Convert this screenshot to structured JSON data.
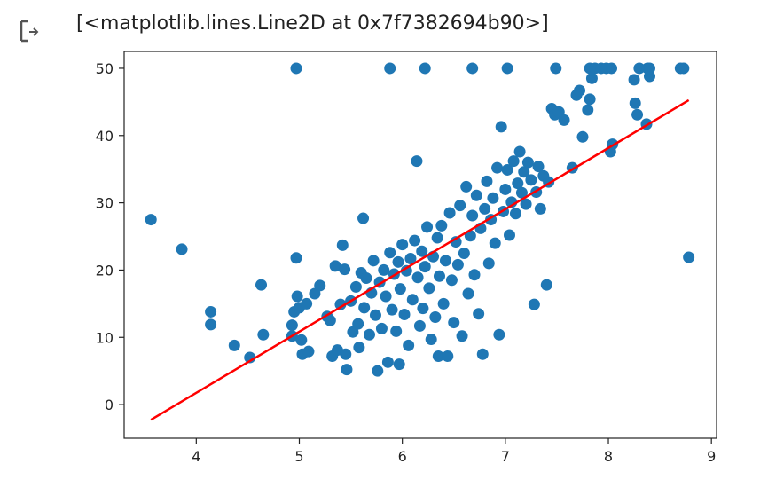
{
  "output": {
    "icon": "output-arrow-icon",
    "text": "[<matplotlib.lines.Line2D at 0x7f7382694b90>]"
  },
  "colors": {
    "points": "#1f77b4",
    "line": "#ff0000",
    "axis": "#222222"
  },
  "chart_data": {
    "type": "scatter",
    "title": "",
    "xlabel": "",
    "ylabel": "",
    "xlim": [
      3.3,
      9.05
    ],
    "ylim": [
      -5,
      52.5
    ],
    "xticks": [
      4,
      5,
      6,
      7,
      8,
      9
    ],
    "yticks": [
      0,
      10,
      20,
      30,
      40,
      50
    ],
    "grid": false,
    "points": [
      [
        3.56,
        27.5
      ],
      [
        3.86,
        23.1
      ],
      [
        4.14,
        13.8
      ],
      [
        4.14,
        11.9
      ],
      [
        4.37,
        8.8
      ],
      [
        4.52,
        7.0
      ],
      [
        4.63,
        17.8
      ],
      [
        4.65,
        10.4
      ],
      [
        4.93,
        11.8
      ],
      [
        4.93,
        10.2
      ],
      [
        4.95,
        13.8
      ],
      [
        4.97,
        21.8
      ],
      [
        4.98,
        16.1
      ],
      [
        5.0,
        14.4
      ],
      [
        5.02,
        9.6
      ],
      [
        5.03,
        7.5
      ],
      [
        5.07,
        15.0
      ],
      [
        5.09,
        7.9
      ],
      [
        5.15,
        16.5
      ],
      [
        5.2,
        17.7
      ],
      [
        5.27,
        13.1
      ],
      [
        5.3,
        12.5
      ],
      [
        5.32,
        7.2
      ],
      [
        5.35,
        20.6
      ],
      [
        5.37,
        8.1
      ],
      [
        5.4,
        14.9
      ],
      [
        5.42,
        23.7
      ],
      [
        5.44,
        20.1
      ],
      [
        5.45,
        7.5
      ],
      [
        5.46,
        5.2
      ],
      [
        5.5,
        15.4
      ],
      [
        5.52,
        10.8
      ],
      [
        5.55,
        17.5
      ],
      [
        5.57,
        12.0
      ],
      [
        5.58,
        8.5
      ],
      [
        5.6,
        19.6
      ],
      [
        5.62,
        27.7
      ],
      [
        5.63,
        14.4
      ],
      [
        5.65,
        18.8
      ],
      [
        5.68,
        10.4
      ],
      [
        5.7,
        16.6
      ],
      [
        5.72,
        21.4
      ],
      [
        5.74,
        13.3
      ],
      [
        5.76,
        5.0
      ],
      [
        5.78,
        18.2
      ],
      [
        5.8,
        11.3
      ],
      [
        5.82,
        20.0
      ],
      [
        5.84,
        16.1
      ],
      [
        5.86,
        6.3
      ],
      [
        5.88,
        22.6
      ],
      [
        5.9,
        14.1
      ],
      [
        5.92,
        19.4
      ],
      [
        5.94,
        10.9
      ],
      [
        5.96,
        21.2
      ],
      [
        5.97,
        6.0
      ],
      [
        5.98,
        17.2
      ],
      [
        6.0,
        23.8
      ],
      [
        6.02,
        13.4
      ],
      [
        6.04,
        19.9
      ],
      [
        6.06,
        8.8
      ],
      [
        6.08,
        21.7
      ],
      [
        6.1,
        15.6
      ],
      [
        6.12,
        24.4
      ],
      [
        6.14,
        36.2
      ],
      [
        6.15,
        18.9
      ],
      [
        6.17,
        11.7
      ],
      [
        6.19,
        22.8
      ],
      [
        6.2,
        14.3
      ],
      [
        6.22,
        20.5
      ],
      [
        6.24,
        26.4
      ],
      [
        6.26,
        17.3
      ],
      [
        6.28,
        9.7
      ],
      [
        6.3,
        22.0
      ],
      [
        6.32,
        13.0
      ],
      [
        6.34,
        24.8
      ],
      [
        6.35,
        7.2
      ],
      [
        6.36,
        19.1
      ],
      [
        6.38,
        26.6
      ],
      [
        6.4,
        15.0
      ],
      [
        6.42,
        21.4
      ],
      [
        6.44,
        7.2
      ],
      [
        6.46,
        28.5
      ],
      [
        6.48,
        18.5
      ],
      [
        6.5,
        12.2
      ],
      [
        6.52,
        24.2
      ],
      [
        6.54,
        20.8
      ],
      [
        6.56,
        29.6
      ],
      [
        6.58,
        10.2
      ],
      [
        6.6,
        22.5
      ],
      [
        6.62,
        32.4
      ],
      [
        6.64,
        16.5
      ],
      [
        6.66,
        25.1
      ],
      [
        6.68,
        28.1
      ],
      [
        6.7,
        19.3
      ],
      [
        6.72,
        31.1
      ],
      [
        6.74,
        13.5
      ],
      [
        6.76,
        26.2
      ],
      [
        6.78,
        7.5
      ],
      [
        6.8,
        29.1
      ],
      [
        6.82,
        33.2
      ],
      [
        6.84,
        21.0
      ],
      [
        6.86,
        27.5
      ],
      [
        6.88,
        30.7
      ],
      [
        6.9,
        24.0
      ],
      [
        6.92,
        35.2
      ],
      [
        6.94,
        10.4
      ],
      [
        6.96,
        41.3
      ],
      [
        6.98,
        28.7
      ],
      [
        7.0,
        32.0
      ],
      [
        7.02,
        34.9
      ],
      [
        7.04,
        25.2
      ],
      [
        7.06,
        30.1
      ],
      [
        7.08,
        36.2
      ],
      [
        7.1,
        28.4
      ],
      [
        7.12,
        32.9
      ],
      [
        7.14,
        37.6
      ],
      [
        7.16,
        31.5
      ],
      [
        7.18,
        34.6
      ],
      [
        7.2,
        29.8
      ],
      [
        7.22,
        36.0
      ],
      [
        7.25,
        33.4
      ],
      [
        7.28,
        14.9
      ],
      [
        7.3,
        31.6
      ],
      [
        7.32,
        35.4
      ],
      [
        7.34,
        29.1
      ],
      [
        7.37,
        34.0
      ],
      [
        7.4,
        17.8
      ],
      [
        7.42,
        33.1
      ],
      [
        7.45,
        44.0
      ],
      [
        7.48,
        43.1
      ],
      [
        7.52,
        43.5
      ],
      [
        7.57,
        42.3
      ],
      [
        7.65,
        35.2
      ],
      [
        7.69,
        46.0
      ],
      [
        7.72,
        46.7
      ],
      [
        7.75,
        39.8
      ],
      [
        7.8,
        43.8
      ],
      [
        7.82,
        45.4
      ],
      [
        7.84,
        48.5
      ],
      [
        8.02,
        37.6
      ],
      [
        8.04,
        38.7
      ],
      [
        8.25,
        48.3
      ],
      [
        8.26,
        44.8
      ],
      [
        8.28,
        43.1
      ],
      [
        8.37,
        41.7
      ],
      [
        8.4,
        48.8
      ],
      [
        8.78,
        21.9
      ],
      [
        4.97,
        50
      ],
      [
        5.88,
        50
      ],
      [
        6.22,
        50
      ],
      [
        6.68,
        50
      ],
      [
        7.02,
        50
      ],
      [
        7.49,
        50
      ],
      [
        7.82,
        50
      ],
      [
        7.87,
        50
      ],
      [
        7.93,
        50
      ],
      [
        7.98,
        50
      ],
      [
        8.03,
        50
      ],
      [
        8.3,
        50
      ],
      [
        8.38,
        50
      ],
      [
        8.4,
        50
      ],
      [
        8.7,
        50
      ],
      [
        8.73,
        50
      ]
    ],
    "line": {
      "x": [
        3.56,
        8.78
      ],
      "y": [
        -2.26,
        45.25
      ]
    }
  }
}
